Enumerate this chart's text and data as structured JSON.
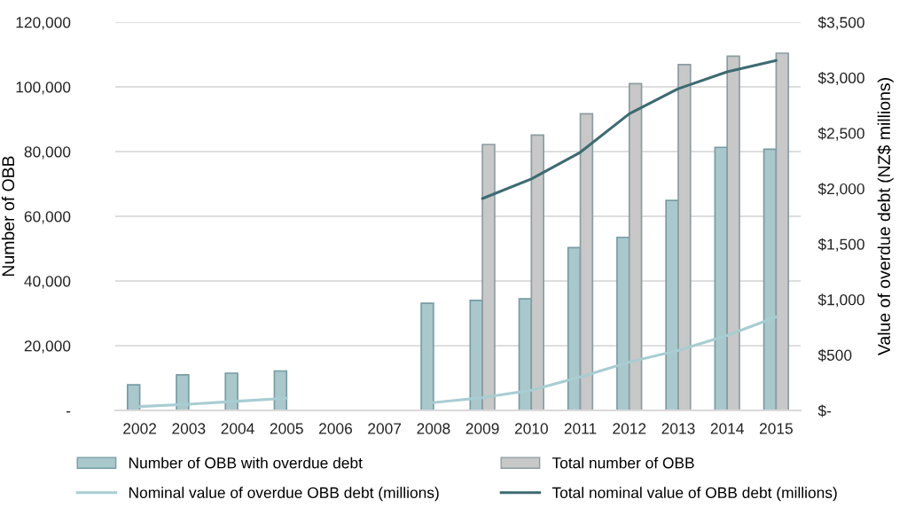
{
  "chart_data": {
    "type": "bar",
    "categories": [
      "2002",
      "2003",
      "2004",
      "2005",
      "2006",
      "2007",
      "2008",
      "2009",
      "2010",
      "2011",
      "2012",
      "2013",
      "2014",
      "2015"
    ],
    "series": [
      {
        "name": "Number of OBB with overdue debt",
        "color": "#a9c8cc",
        "values": [
          7900,
          11000,
          11500,
          12200,
          null,
          null,
          33100,
          34000,
          34500,
          50300,
          53500,
          64900,
          81300,
          80700
        ]
      },
      {
        "name": "Total number of OBB",
        "color": "#c8c8c8",
        "values": [
          null,
          null,
          null,
          null,
          null,
          null,
          null,
          82200,
          85100,
          91700,
          101000,
          106900,
          109500,
          110400
        ]
      },
      {
        "name": "Nominal value of overdue OBB debt (millions)",
        "type": "line",
        "axis": "y2",
        "color": "#a8cdd2",
        "values": [
          35,
          56,
          83,
          110,
          null,
          null,
          70,
          115,
          181,
          301,
          435,
          541,
          675,
          843
        ]
      },
      {
        "name": "Total nominal value of OBB debt (millions)",
        "type": "line",
        "axis": "y2",
        "color": "#3d6b72",
        "values": [
          null,
          null,
          null,
          null,
          null,
          null,
          null,
          1910,
          2087,
          2327,
          2674,
          2900,
          3052,
          3154
        ]
      }
    ],
    "ylabel": "Number of OBB",
    "y2label": "Value of overdue debt (NZ$ millions)",
    "ylim": [
      0,
      120000
    ],
    "yticks": [
      {
        "value": 0,
        "label": "-"
      },
      {
        "value": 20000,
        "label": "20,000"
      },
      {
        "value": 40000,
        "label": "40,000"
      },
      {
        "value": 60000,
        "label": "60,000"
      },
      {
        "value": 80000,
        "label": "80,000"
      },
      {
        "value": 100000,
        "label": "100,000"
      },
      {
        "value": 120000,
        "label": "120,000"
      }
    ],
    "y2lim": [
      0,
      3500
    ],
    "y2ticks": [
      {
        "value": 0,
        "label": "$-"
      },
      {
        "value": 500,
        "label": "$500"
      },
      {
        "value": 1000,
        "label": "$1,000"
      },
      {
        "value": 1500,
        "label": "$1,500"
      },
      {
        "value": 2000,
        "label": "$2,000"
      },
      {
        "value": 2500,
        "label": "$2,500"
      },
      {
        "value": 3000,
        "label": "$3,000"
      },
      {
        "value": 3500,
        "label": "$3,500"
      }
    ],
    "grid": "y",
    "legend": "bottom"
  }
}
